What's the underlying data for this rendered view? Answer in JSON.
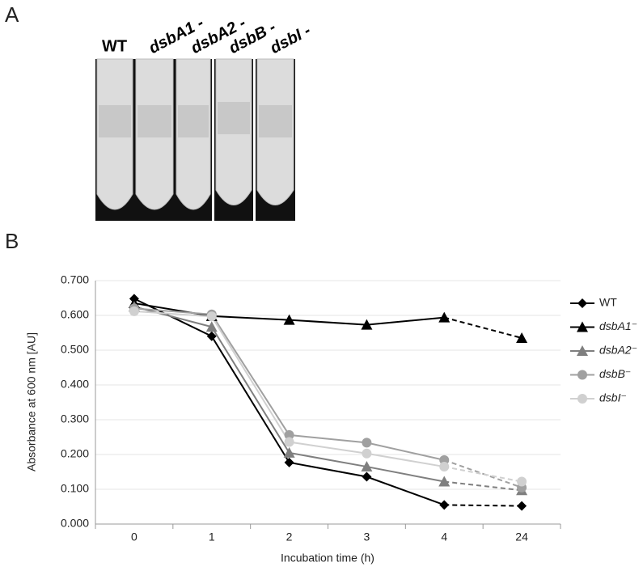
{
  "panel_a": {
    "label": "A",
    "tube_labels": [
      "WT",
      "dsbA1 -",
      "dsbA2 -",
      "dsbB -",
      "dsbI -"
    ]
  },
  "chart_data": {
    "type": "line",
    "panel_label": "B",
    "x_label": "Incubation time (h)",
    "y_label": "Absorbance at 600 nm [AU]",
    "categories": [
      "0",
      "1",
      "2",
      "3",
      "4",
      "24"
    ],
    "ylim": [
      0,
      0.7
    ],
    "yticks": [
      {
        "value": 0,
        "label": "0.000"
      },
      {
        "value": 0.1,
        "label": "0.100"
      },
      {
        "value": 0.2,
        "label": "0.200"
      },
      {
        "value": 0.3,
        "label": "0.300"
      },
      {
        "value": 0.4,
        "label": "0.400"
      },
      {
        "value": 0.5,
        "label": "0.500"
      },
      {
        "value": 0.6,
        "label": "0.600"
      },
      {
        "value": 0.7,
        "label": "0.700"
      }
    ],
    "grid": true,
    "legend": "right",
    "dashed_last_segment": true,
    "series": [
      {
        "name": "WT",
        "color": "#000000",
        "marker": "diamond",
        "italic": false,
        "values": [
          0.648,
          0.54,
          0.177,
          0.136,
          0.055,
          0.052
        ]
      },
      {
        "name": "dsbA1⁻",
        "color": "#000000",
        "marker": "triangle",
        "italic": true,
        "values": [
          0.635,
          0.598,
          0.587,
          0.573,
          0.594,
          0.535
        ]
      },
      {
        "name": "dsbA2⁻",
        "color": "#7f7f7f",
        "marker": "triangle",
        "italic": true,
        "values": [
          0.625,
          0.567,
          0.205,
          0.165,
          0.122,
          0.097
        ]
      },
      {
        "name": "dsbB⁻",
        "color": "#a0a0a0",
        "marker": "circle",
        "italic": true,
        "values": [
          0.62,
          0.603,
          0.256,
          0.234,
          0.184,
          0.105
        ]
      },
      {
        "name": "dsbI⁻",
        "color": "#d0d0d0",
        "marker": "circle",
        "italic": true,
        "values": [
          0.612,
          0.597,
          0.236,
          0.203,
          0.165,
          0.122
        ]
      }
    ]
  }
}
